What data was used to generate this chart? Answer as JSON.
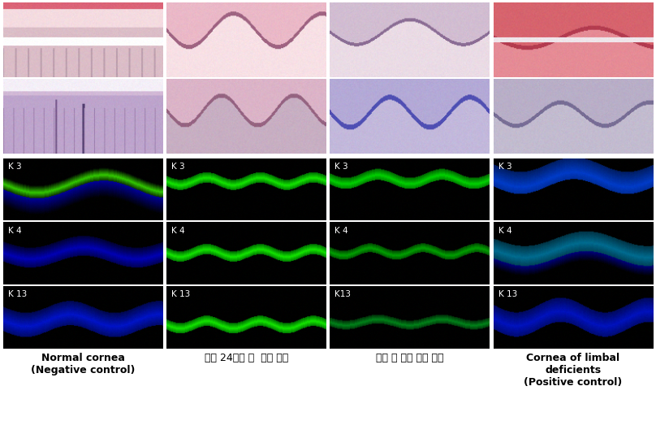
{
  "background_color": "#ffffff",
  "col_labels": [
    "Normal cornea\n(Negative control)",
    "분리 24시간 후  시트 이식",
    "분리 후 바로 시트 이식",
    "Cornea of limbal\ndeficients\n(Positive control)"
  ],
  "col_labels_bold": [
    true,
    false,
    false,
    true
  ],
  "fl_labels": [
    [
      "K 3",
      "K 4",
      "K 13"
    ],
    [
      "K 3",
      "K 4",
      "K 13"
    ],
    [
      "K 3",
      "K 4",
      "K13"
    ],
    [
      "K 3",
      "K 4",
      "K 13"
    ]
  ],
  "figure_width": 8.08,
  "figure_height": 5.18,
  "dpi": 100
}
